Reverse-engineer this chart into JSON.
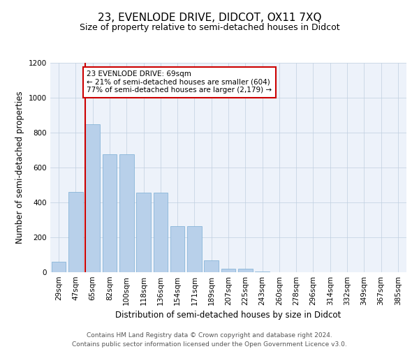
{
  "title": "23, EVENLODE DRIVE, DIDCOT, OX11 7XQ",
  "subtitle": "Size of property relative to semi-detached houses in Didcot",
  "xlabel": "Distribution of semi-detached houses by size in Didcot",
  "ylabel": "Number of semi-detached properties",
  "categories": [
    "29sqm",
    "47sqm",
    "65sqm",
    "82sqm",
    "100sqm",
    "118sqm",
    "136sqm",
    "154sqm",
    "171sqm",
    "189sqm",
    "207sqm",
    "225sqm",
    "243sqm",
    "260sqm",
    "278sqm",
    "296sqm",
    "314sqm",
    "332sqm",
    "349sqm",
    "367sqm",
    "385sqm"
  ],
  "values": [
    60,
    460,
    850,
    675,
    675,
    455,
    455,
    265,
    265,
    70,
    20,
    20,
    5,
    0,
    0,
    0,
    0,
    0,
    0,
    0,
    0
  ],
  "bar_color": "#b8d0ea",
  "bar_edge_color": "#7aadd4",
  "vline_color": "#cc0000",
  "vline_x_idx": 2,
  "annotation_text": "23 EVENLODE DRIVE: 69sqm\n← 21% of semi-detached houses are smaller (604)\n77% of semi-detached houses are larger (2,179) →",
  "annotation_box_color": "#ffffff",
  "annotation_box_edge": "#cc0000",
  "ylim": [
    0,
    1200
  ],
  "yticks": [
    0,
    200,
    400,
    600,
    800,
    1000,
    1200
  ],
  "footer_text": "Contains HM Land Registry data © Crown copyright and database right 2024.\nContains public sector information licensed under the Open Government Licence v3.0.",
  "background_color": "#edf2fa",
  "title_fontsize": 11,
  "subtitle_fontsize": 9,
  "xlabel_fontsize": 8.5,
  "ylabel_fontsize": 8.5,
  "tick_fontsize": 7.5,
  "annotation_fontsize": 7.5,
  "footer_fontsize": 6.5
}
